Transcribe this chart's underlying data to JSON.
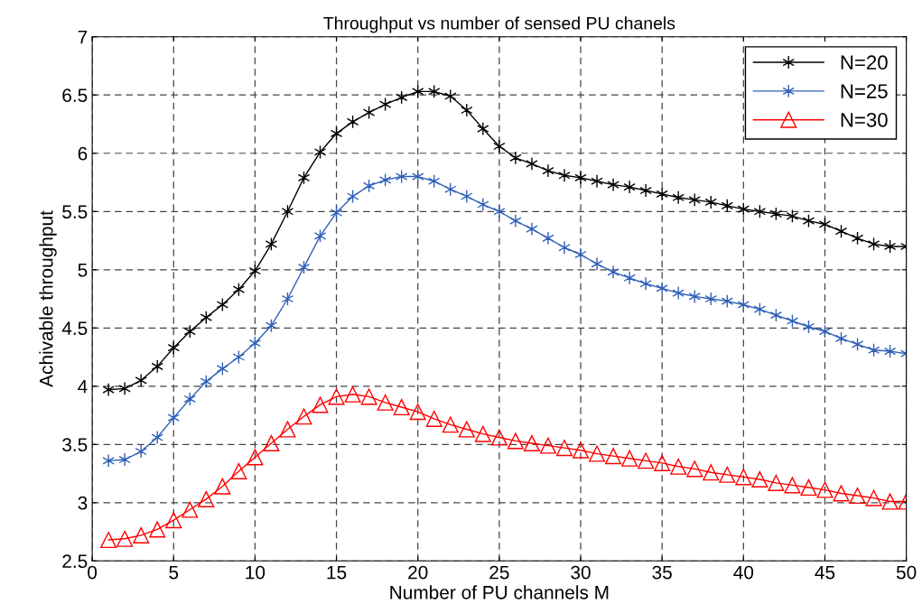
{
  "chart_data": {
    "type": "line",
    "title": "Throughput vs number of sensed PU chanels",
    "xlabel": "Number of PU channels M",
    "ylabel": "Achivable throughput",
    "x": [
      1,
      2,
      3,
      4,
      5,
      6,
      7,
      8,
      9,
      10,
      11,
      12,
      13,
      14,
      15,
      16,
      17,
      18,
      19,
      20,
      21,
      22,
      23,
      24,
      25,
      26,
      27,
      28,
      29,
      30,
      31,
      32,
      33,
      34,
      35,
      36,
      37,
      38,
      39,
      40,
      41,
      42,
      43,
      44,
      45,
      46,
      47,
      48,
      49,
      50
    ],
    "series": [
      {
        "name": "N=20",
        "color": "#000000",
        "marker": "cross",
        "values": [
          3.97,
          3.98,
          4.05,
          4.17,
          4.33,
          4.47,
          4.59,
          4.7,
          4.83,
          4.99,
          5.22,
          5.5,
          5.79,
          6.01,
          6.17,
          6.27,
          6.35,
          6.42,
          6.48,
          6.53,
          6.53,
          6.49,
          6.37,
          6.21,
          6.06,
          5.96,
          5.91,
          5.85,
          5.81,
          5.79,
          5.76,
          5.73,
          5.71,
          5.68,
          5.65,
          5.62,
          5.6,
          5.58,
          5.55,
          5.52,
          5.5,
          5.48,
          5.46,
          5.42,
          5.39,
          5.33,
          5.27,
          5.22,
          5.2,
          5.2
        ]
      },
      {
        "name": "N=25",
        "color": "#3060b8",
        "marker": "cross",
        "values": [
          3.36,
          3.37,
          3.44,
          3.56,
          3.73,
          3.89,
          4.04,
          4.15,
          4.25,
          4.37,
          4.52,
          4.75,
          5.02,
          5.29,
          5.49,
          5.63,
          5.72,
          5.77,
          5.8,
          5.8,
          5.76,
          5.69,
          5.63,
          5.56,
          5.5,
          5.42,
          5.35,
          5.27,
          5.19,
          5.13,
          5.05,
          4.98,
          4.93,
          4.88,
          4.84,
          4.8,
          4.77,
          4.75,
          4.73,
          4.7,
          4.66,
          4.61,
          4.56,
          4.51,
          4.47,
          4.41,
          4.36,
          4.31,
          4.3,
          4.28
        ]
      },
      {
        "name": "N=30",
        "color": "#ff0000",
        "marker": "triangle",
        "values": [
          2.68,
          2.69,
          2.72,
          2.77,
          2.85,
          2.94,
          3.03,
          3.14,
          3.27,
          3.39,
          3.51,
          3.63,
          3.74,
          3.84,
          3.91,
          3.93,
          3.91,
          3.86,
          3.82,
          3.78,
          3.72,
          3.67,
          3.63,
          3.59,
          3.56,
          3.53,
          3.51,
          3.49,
          3.47,
          3.45,
          3.42,
          3.4,
          3.38,
          3.36,
          3.34,
          3.31,
          3.29,
          3.26,
          3.24,
          3.22,
          3.2,
          3.17,
          3.15,
          3.13,
          3.11,
          3.08,
          3.06,
          3.04,
          3.01,
          3.01
        ]
      }
    ],
    "xlim": [
      0,
      50
    ],
    "xticks": [
      0,
      5,
      10,
      15,
      20,
      25,
      30,
      35,
      40,
      45,
      50
    ],
    "ylim": [
      2.5,
      7
    ],
    "yticks": [
      2.5,
      3,
      3.5,
      4,
      4.5,
      5,
      5.5,
      6,
      6.5,
      7
    ],
    "grid": true,
    "legend": "top right",
    "line_style": "solid"
  }
}
